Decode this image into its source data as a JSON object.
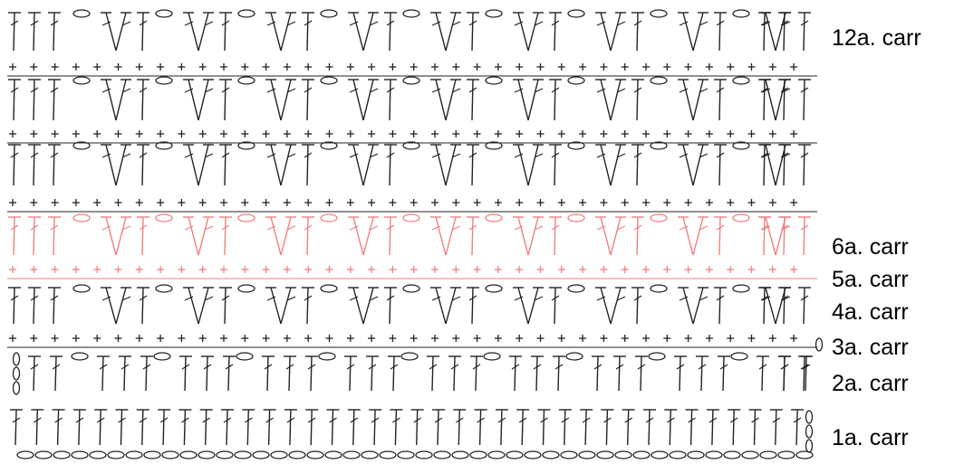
{
  "diagram": {
    "colors": {
      "ink": "#222222",
      "highlight": "#f08080"
    },
    "row_labels": [
      "12a. carr",
      "6a. carr",
      "5a. carr",
      "4a. carr",
      "3a. carr",
      "2a. carr",
      "1a. carr"
    ]
  }
}
